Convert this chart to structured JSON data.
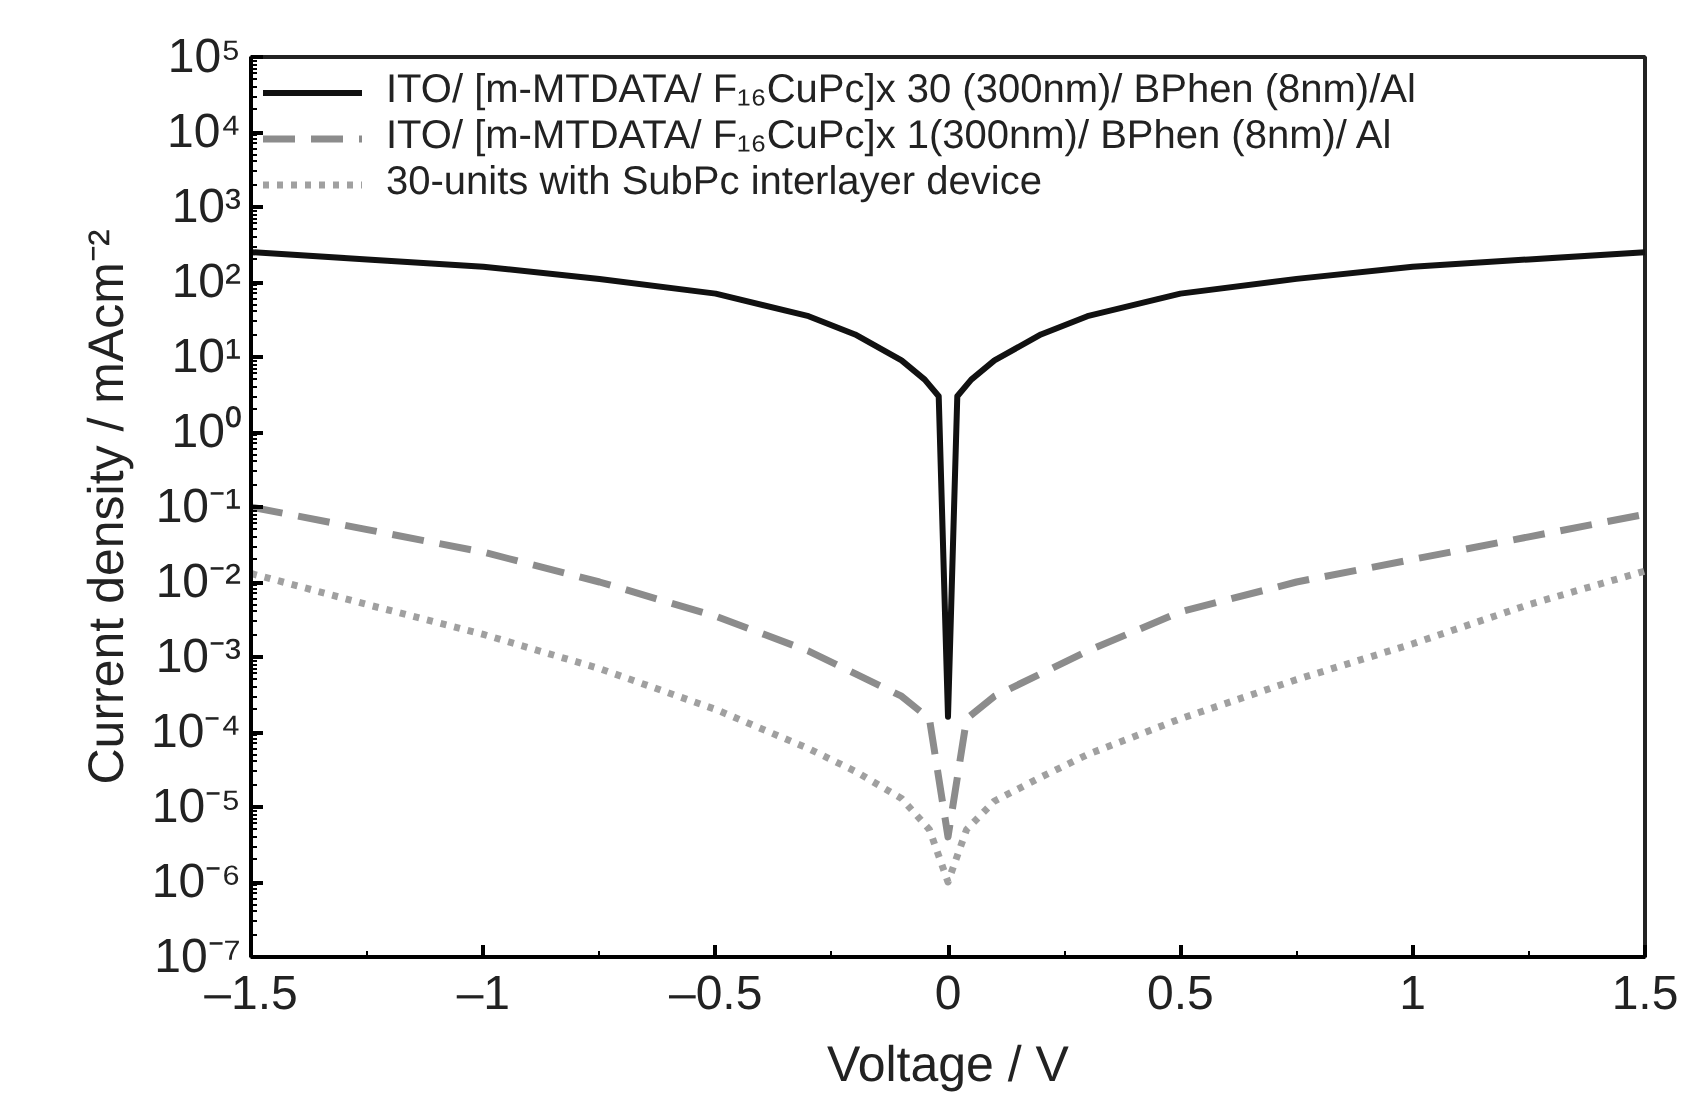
{
  "chart_data": {
    "type": "line",
    "xlabel": "Voltage / V",
    "ylabel": "Current density / mAcm⁻²",
    "log": "y",
    "xlim": [
      -1.5,
      1.5
    ],
    "ylim": [
      1e-07,
      100000.0
    ],
    "xticks": [
      {
        "value": -1.5,
        "label": "–1.5"
      },
      {
        "value": -1,
        "label": "–1"
      },
      {
        "value": -0.5,
        "label": "–0.5"
      },
      0,
      0.5,
      1,
      1.5
    ],
    "yticks": [
      {
        "value": 1e-07,
        "label": "10⁻⁷"
      },
      {
        "value": 1e-06,
        "label": "10⁻⁶"
      },
      {
        "value": 1e-05,
        "label": "10⁻⁵"
      },
      {
        "value": 0.0001,
        "label": "10⁻⁴"
      },
      {
        "value": 0.001,
        "label": "10⁻³"
      },
      {
        "value": 0.01,
        "label": "10⁻²"
      },
      {
        "value": 0.1,
        "label": "10⁻¹"
      },
      {
        "value": 1,
        "label": "10⁰"
      },
      {
        "value": 10,
        "label": "10¹"
      },
      {
        "value": 100,
        "label": "10²"
      },
      {
        "value": 1000,
        "label": "10³"
      },
      {
        "value": 10000,
        "label": "10⁴"
      },
      {
        "value": 100000,
        "label": "10⁵"
      }
    ],
    "grid": false,
    "legend": "top left",
    "marker": "none",
    "series": [
      {
        "name": "ITO/ [m-MTDATA/ F₁₆CuPc]x 30 (300nm)/ BPhen (8nm)/Al",
        "color": "#111111",
        "line_style": "solid",
        "x": [
          -1.5,
          -1.25,
          -1.0,
          -0.75,
          -0.5,
          -0.3,
          -0.2,
          -0.1,
          -0.05,
          -0.02,
          0,
          0.02,
          0.05,
          0.1,
          0.2,
          0.3,
          0.5,
          0.75,
          1.0,
          1.25,
          1.5
        ],
        "values": [
          250,
          200,
          160,
          110,
          70,
          35,
          20,
          9,
          5,
          3,
          0.00016,
          3,
          5,
          9,
          20,
          35,
          70,
          110,
          160,
          200,
          250
        ]
      },
      {
        "name": "ITO/ [m-MTDATA/ F₁₆CuPc]x 1(300nm)/ BPhen (8nm)/ Al",
        "color": "#8c8c8c",
        "line_style": "dashed",
        "x": [
          -1.5,
          -1.25,
          -1.0,
          -0.75,
          -0.5,
          -0.3,
          -0.2,
          -0.1,
          -0.04,
          0,
          0.04,
          0.1,
          0.2,
          0.3,
          0.5,
          0.75,
          1.0,
          1.25,
          1.5
        ],
        "values": [
          0.1,
          0.05,
          0.025,
          0.01,
          0.0035,
          0.0012,
          0.0006,
          0.0003,
          0.00015,
          4e-06,
          0.00015,
          0.0003,
          0.0006,
          0.0012,
          0.004,
          0.01,
          0.02,
          0.04,
          0.08
        ]
      },
      {
        "name": "30-units with SubPc interlayer device",
        "color": "#a0a0a0",
        "line_style": "dotted",
        "x": [
          -1.5,
          -1.25,
          -1.0,
          -0.75,
          -0.5,
          -0.3,
          -0.2,
          -0.1,
          -0.04,
          0,
          0.04,
          0.1,
          0.2,
          0.3,
          0.5,
          0.75,
          1.0,
          1.25,
          1.5
        ],
        "values": [
          0.013,
          0.005,
          0.002,
          0.0007,
          0.0002,
          6e-05,
          3e-05,
          1.3e-05,
          5e-06,
          1e-06,
          5e-06,
          1.2e-05,
          2.5e-05,
          5e-05,
          0.00015,
          0.0005,
          0.0015,
          0.005,
          0.014
        ]
      }
    ]
  }
}
